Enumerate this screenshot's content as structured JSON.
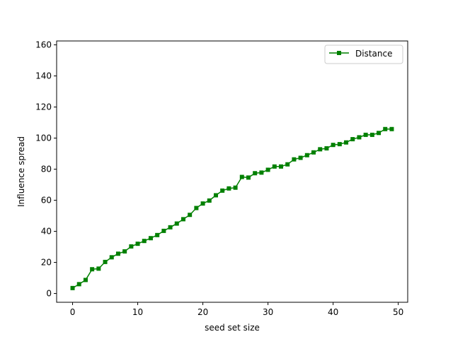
{
  "chart_data": {
    "type": "line",
    "title": "",
    "xlabel": "seed set size",
    "ylabel": "Influence spread",
    "xlim": [
      -2.45,
      51.45
    ],
    "ylim": [
      -5.65,
      162.5
    ],
    "xticks": [
      0,
      10,
      20,
      30,
      40,
      50
    ],
    "yticks": [
      0,
      20,
      40,
      60,
      80,
      100,
      120,
      140,
      160
    ],
    "grid": false,
    "legend_position": "top-right",
    "series": [
      {
        "name": "Distance",
        "color": "#008000",
        "marker": "square",
        "x": [
          0,
          1,
          2,
          3,
          4,
          5,
          6,
          7,
          8,
          9,
          10,
          11,
          12,
          13,
          14,
          15,
          16,
          17,
          18,
          19,
          20,
          21,
          22,
          23,
          24,
          25,
          26,
          27,
          28,
          29,
          30,
          31,
          32,
          33,
          34,
          35,
          36,
          37,
          38,
          39,
          40,
          41,
          42,
          43,
          44,
          45,
          46,
          47,
          48,
          49
        ],
        "y": [
          3.5,
          6.0,
          8.7,
          15.6,
          16.0,
          20.3,
          23.3,
          25.6,
          27.1,
          30.3,
          32.0,
          33.8,
          35.6,
          37.6,
          40.3,
          42.6,
          45.0,
          47.8,
          50.6,
          55.0,
          57.9,
          59.8,
          63.2,
          66.2,
          67.6,
          68.1,
          75.0,
          74.6,
          77.4,
          77.8,
          79.6,
          81.7,
          81.7,
          83.1,
          86.3,
          87.3,
          89.0,
          90.8,
          92.8,
          93.4,
          95.6,
          96.1,
          97.2,
          99.3,
          100.5,
          102.1,
          102.1,
          103.3,
          105.8,
          105.8
        ]
      }
    ]
  },
  "colors": {
    "series": "#008000",
    "axes": "#000000",
    "legend_border": "#cccccc",
    "background": "#ffffff"
  }
}
